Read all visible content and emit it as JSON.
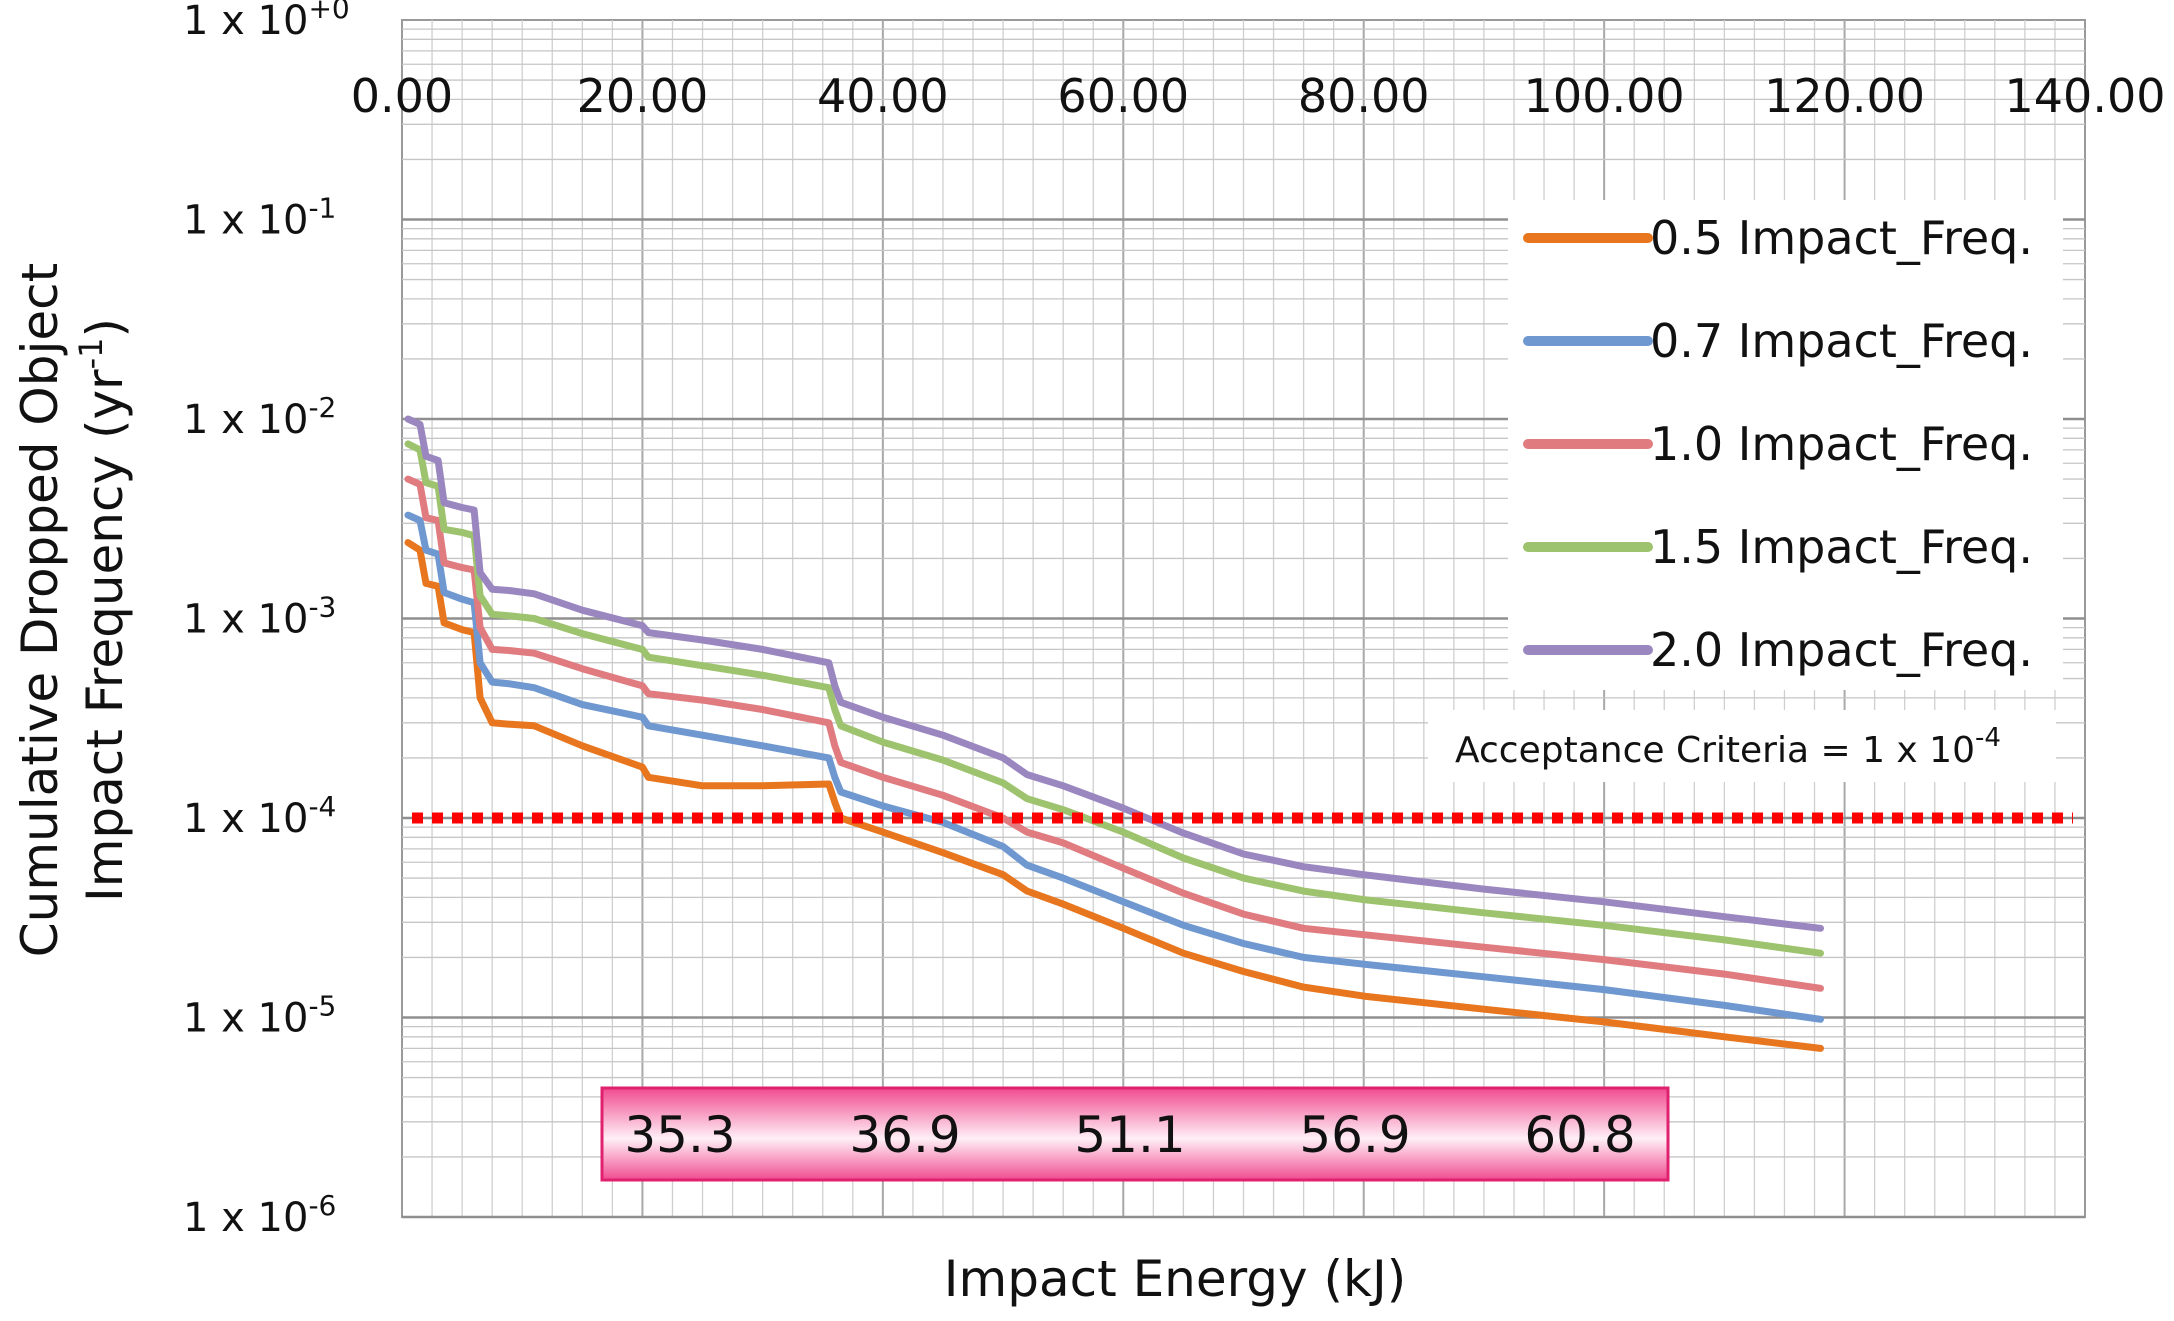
{
  "chart_data": {
    "type": "line",
    "title": "",
    "xlabel": "Impact Energy (kJ)",
    "ylabel_line1": "Cumulative Dropped Object",
    "ylabel_line2": "Impact Frequency (yr",
    "ylabel_sup": "-1",
    "ylabel_close": ")",
    "xlim": [
      0,
      140
    ],
    "ylim": [
      1e-06,
      1
    ],
    "yscale": "log",
    "grid": true,
    "legend_position": "right",
    "x_ticks": [
      "0.00",
      "20.00",
      "40.00",
      "60.00",
      "80.00",
      "100.00",
      "120.00",
      "140.00"
    ],
    "x_tick_values": [
      0,
      20,
      40,
      60,
      80,
      100,
      120,
      140
    ],
    "y_ticks": [
      {
        "base": "1 x 10",
        "exp": "+0",
        "value": 1
      },
      {
        "base": "1 x 10",
        "exp": "-1",
        "value": 0.1
      },
      {
        "base": "1 x 10",
        "exp": "-2",
        "value": 0.01
      },
      {
        "base": "1 x 10",
        "exp": "-3",
        "value": 0.001
      },
      {
        "base": "1 x 10",
        "exp": "-4",
        "value": 0.0001
      },
      {
        "base": "1 x 10",
        "exp": "-5",
        "value": 1e-05
      },
      {
        "base": "1 x 10",
        "exp": "-6",
        "value": 1e-06
      }
    ],
    "series": [
      {
        "name": "0.5 Impact_Freq.",
        "color": "#e8761f",
        "points": [
          [
            0.5,
            0.0024
          ],
          [
            1.5,
            0.0022
          ],
          [
            2,
            0.0015
          ],
          [
            3,
            0.00145
          ],
          [
            3.5,
            0.00095
          ],
          [
            5,
            0.00088
          ],
          [
            6,
            0.00085
          ],
          [
            6.5,
            0.0004
          ],
          [
            7.5,
            0.0003
          ],
          [
            9,
            0.000295
          ],
          [
            11,
            0.00029
          ],
          [
            15,
            0.00023
          ],
          [
            20,
            0.00018
          ],
          [
            20.5,
            0.00016
          ],
          [
            25,
            0.000145
          ],
          [
            30,
            0.000145
          ],
          [
            35.5,
            0.000148
          ],
          [
            36,
            0.00012
          ],
          [
            36.5,
            0.0001
          ],
          [
            40,
            8.5e-05
          ],
          [
            45,
            6.7e-05
          ],
          [
            50,
            5.2e-05
          ],
          [
            52,
            4.3e-05
          ],
          [
            55,
            3.7e-05
          ],
          [
            60,
            2.8e-05
          ],
          [
            65,
            2.1e-05
          ],
          [
            70,
            1.7e-05
          ],
          [
            75,
            1.42e-05
          ],
          [
            80,
            1.28e-05
          ],
          [
            90,
            1.1e-05
          ],
          [
            100,
            9.5e-06
          ],
          [
            110,
            8e-06
          ],
          [
            118,
            7e-06
          ]
        ]
      },
      {
        "name": "0.7 Impact_Freq.",
        "color": "#6f97d0",
        "points": [
          [
            0.5,
            0.0033
          ],
          [
            1.5,
            0.0031
          ],
          [
            2,
            0.0022
          ],
          [
            3,
            0.0021
          ],
          [
            3.5,
            0.00135
          ],
          [
            5,
            0.00125
          ],
          [
            6,
            0.0012
          ],
          [
            6.5,
            0.0006
          ],
          [
            7.5,
            0.00048
          ],
          [
            9,
            0.00047
          ],
          [
            11,
            0.00045
          ],
          [
            15,
            0.00037
          ],
          [
            20,
            0.00032
          ],
          [
            20.5,
            0.00029
          ],
          [
            25,
            0.00026
          ],
          [
            30,
            0.00023
          ],
          [
            35.5,
            0.0002
          ],
          [
            36,
            0.00016
          ],
          [
            36.5,
            0.000135
          ],
          [
            40,
            0.000115
          ],
          [
            45,
            9.5e-05
          ],
          [
            50,
            7.2e-05
          ],
          [
            52,
            5.8e-05
          ],
          [
            55,
            5e-05
          ],
          [
            60,
            3.8e-05
          ],
          [
            65,
            2.9e-05
          ],
          [
            70,
            2.35e-05
          ],
          [
            75,
            2e-05
          ],
          [
            80,
            1.85e-05
          ],
          [
            90,
            1.6e-05
          ],
          [
            100,
            1.38e-05
          ],
          [
            110,
            1.15e-05
          ],
          [
            118,
            9.8e-06
          ]
        ]
      },
      {
        "name": "1.0 Impact_Freq.",
        "color": "#e07b80",
        "points": [
          [
            0.5,
            0.005
          ],
          [
            1.5,
            0.0047
          ],
          [
            2,
            0.0032
          ],
          [
            3,
            0.0031
          ],
          [
            3.5,
            0.0019
          ],
          [
            5,
            0.0018
          ],
          [
            6,
            0.00175
          ],
          [
            6.5,
            0.0009
          ],
          [
            7.5,
            0.0007
          ],
          [
            9,
            0.00069
          ],
          [
            11,
            0.00067
          ],
          [
            15,
            0.00056
          ],
          [
            20,
            0.00046
          ],
          [
            20.5,
            0.00042
          ],
          [
            25,
            0.00039
          ],
          [
            30,
            0.00035
          ],
          [
            35.5,
            0.0003
          ],
          [
            36,
            0.00023
          ],
          [
            36.5,
            0.00019
          ],
          [
            40,
            0.00016
          ],
          [
            45,
            0.00013
          ],
          [
            50,
            0.0001
          ],
          [
            52,
            8.5e-05
          ],
          [
            55,
            7.5e-05
          ],
          [
            60,
            5.6e-05
          ],
          [
            65,
            4.2e-05
          ],
          [
            70,
            3.3e-05
          ],
          [
            75,
            2.8e-05
          ],
          [
            80,
            2.6e-05
          ],
          [
            90,
            2.25e-05
          ],
          [
            100,
            1.95e-05
          ],
          [
            110,
            1.65e-05
          ],
          [
            118,
            1.4e-05
          ]
        ]
      },
      {
        "name": "1.5 Impact_Freq.",
        "color": "#9ec36e",
        "points": [
          [
            0.5,
            0.0075
          ],
          [
            1.5,
            0.007
          ],
          [
            2,
            0.0048
          ],
          [
            3,
            0.0046
          ],
          [
            3.5,
            0.0028
          ],
          [
            5,
            0.0027
          ],
          [
            6,
            0.0026
          ],
          [
            6.5,
            0.0013
          ],
          [
            7.5,
            0.00105
          ],
          [
            9,
            0.00103
          ],
          [
            11,
            0.001
          ],
          [
            15,
            0.00084
          ],
          [
            20,
            0.0007
          ],
          [
            20.5,
            0.00064
          ],
          [
            25,
            0.00058
          ],
          [
            30,
            0.00052
          ],
          [
            35.5,
            0.00045
          ],
          [
            36,
            0.00035
          ],
          [
            36.5,
            0.00029
          ],
          [
            40,
            0.00024
          ],
          [
            45,
            0.000195
          ],
          [
            50,
            0.00015
          ],
          [
            52,
            0.000125
          ],
          [
            55,
            0.00011
          ],
          [
            60,
            8.5e-05
          ],
          [
            65,
            6.3e-05
          ],
          [
            70,
            5e-05
          ],
          [
            75,
            4.3e-05
          ],
          [
            80,
            3.9e-05
          ],
          [
            90,
            3.35e-05
          ],
          [
            100,
            2.9e-05
          ],
          [
            110,
            2.45e-05
          ],
          [
            118,
            2.1e-05
          ]
        ]
      },
      {
        "name": "2.0 Impact_Freq.",
        "color": "#9b87c0",
        "points": [
          [
            0.5,
            0.01
          ],
          [
            1.5,
            0.0094
          ],
          [
            2,
            0.0065
          ],
          [
            3,
            0.0062
          ],
          [
            3.5,
            0.0038
          ],
          [
            5,
            0.0036
          ],
          [
            6,
            0.0035
          ],
          [
            6.5,
            0.0017
          ],
          [
            7.5,
            0.0014
          ],
          [
            9,
            0.00138
          ],
          [
            11,
            0.00133
          ],
          [
            15,
            0.0011
          ],
          [
            20,
            0.00092
          ],
          [
            20.5,
            0.00085
          ],
          [
            25,
            0.00078
          ],
          [
            30,
            0.0007
          ],
          [
            35.5,
            0.0006
          ],
          [
            36,
            0.00046
          ],
          [
            36.5,
            0.00038
          ],
          [
            40,
            0.00032
          ],
          [
            45,
            0.00026
          ],
          [
            50,
            0.0002
          ],
          [
            52,
            0.000165
          ],
          [
            55,
            0.000145
          ],
          [
            60,
            0.000112
          ],
          [
            65,
            8.4e-05
          ],
          [
            70,
            6.6e-05
          ],
          [
            75,
            5.7e-05
          ],
          [
            80,
            5.2e-05
          ],
          [
            90,
            4.4e-05
          ],
          [
            100,
            3.8e-05
          ],
          [
            110,
            3.2e-05
          ],
          [
            118,
            2.8e-05
          ]
        ]
      }
    ],
    "acceptance_line": {
      "value": 0.0001,
      "color": "#ff0000"
    },
    "annotation": {
      "base": "Acceptance Criteria = 1 x 10",
      "exp": "-4"
    },
    "criteria_box": {
      "values": [
        "35.3",
        "36.9",
        "51.1",
        "56.9",
        "60.8"
      ],
      "fill_color": "#f25a9a",
      "border_color": "#e0216f"
    }
  }
}
